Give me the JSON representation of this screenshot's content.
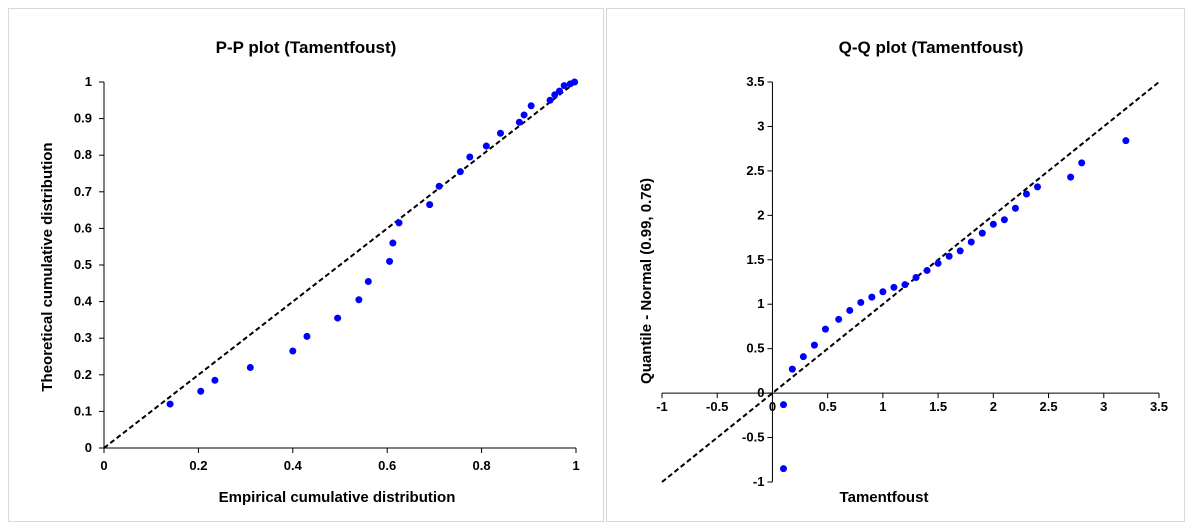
{
  "chart_data": [
    {
      "type": "scatter",
      "title": "P-P plot (Tamentfoust)",
      "xlabel": "Empirical cumulative distribution",
      "ylabel": "Theoretical cumulative distribution",
      "xlim": [
        0,
        1
      ],
      "ylim": [
        0,
        1
      ],
      "xticks": [
        "0",
        "0.2",
        "0.4",
        "0.6",
        "0.8",
        "1"
      ],
      "yticks": [
        "0",
        "0.1",
        "0.2",
        "0.3",
        "0.4",
        "0.5",
        "0.6",
        "0.7",
        "0.8",
        "0.9",
        "1"
      ],
      "reference_line": {
        "from": [
          0,
          0
        ],
        "to": [
          1,
          1
        ],
        "style": "dashed"
      },
      "point_color": "#0000ff",
      "points": [
        [
          0.14,
          0.12
        ],
        [
          0.205,
          0.155
        ],
        [
          0.235,
          0.185
        ],
        [
          0.31,
          0.22
        ],
        [
          0.4,
          0.265
        ],
        [
          0.43,
          0.305
        ],
        [
          0.495,
          0.355
        ],
        [
          0.54,
          0.405
        ],
        [
          0.56,
          0.455
        ],
        [
          0.605,
          0.51
        ],
        [
          0.612,
          0.56
        ],
        [
          0.625,
          0.615
        ],
        [
          0.69,
          0.665
        ],
        [
          0.71,
          0.715
        ],
        [
          0.755,
          0.755
        ],
        [
          0.775,
          0.795
        ],
        [
          0.81,
          0.825
        ],
        [
          0.84,
          0.86
        ],
        [
          0.88,
          0.89
        ],
        [
          0.89,
          0.91
        ],
        [
          0.905,
          0.935
        ],
        [
          0.945,
          0.95
        ],
        [
          0.955,
          0.965
        ],
        [
          0.965,
          0.975
        ],
        [
          0.975,
          0.99
        ],
        [
          0.988,
          0.995
        ],
        [
          0.997,
          1.0
        ]
      ]
    },
    {
      "type": "scatter",
      "title": "Q-Q plot (Tamentfoust)",
      "xlabel": "Tamentfoust",
      "ylabel": "Quantile - Normal (0.99, 0.76)",
      "xlim": [
        -1,
        3.5
      ],
      "ylim": [
        -1,
        3.5
      ],
      "xticks": [
        "-1",
        "-0.5",
        "0",
        "0.5",
        "1",
        "1.5",
        "2",
        "2.5",
        "3",
        "3.5"
      ],
      "yticks": [
        "-1",
        "-0.5",
        "0",
        "0.5",
        "1",
        "1.5",
        "2",
        "2.5",
        "3",
        "3.5"
      ],
      "reference_line": {
        "from": [
          -1,
          -1
        ],
        "to": [
          3.5,
          3.5
        ],
        "style": "dashed"
      },
      "point_color": "#0000ff",
      "points": [
        [
          0.1,
          -0.85
        ],
        [
          0.1,
          -0.13
        ],
        [
          0.18,
          0.27
        ],
        [
          0.28,
          0.41
        ],
        [
          0.38,
          0.54
        ],
        [
          0.48,
          0.72
        ],
        [
          0.6,
          0.83
        ],
        [
          0.7,
          0.93
        ],
        [
          0.8,
          1.02
        ],
        [
          0.9,
          1.08
        ],
        [
          1.0,
          1.14
        ],
        [
          1.1,
          1.19
        ],
        [
          1.2,
          1.22
        ],
        [
          1.3,
          1.3
        ],
        [
          1.4,
          1.38
        ],
        [
          1.5,
          1.46
        ],
        [
          1.6,
          1.54
        ],
        [
          1.7,
          1.6
        ],
        [
          1.8,
          1.7
        ],
        [
          1.9,
          1.8
        ],
        [
          2.0,
          1.9
        ],
        [
          2.1,
          1.95
        ],
        [
          2.2,
          2.08
        ],
        [
          2.3,
          2.24
        ],
        [
          2.4,
          2.32
        ],
        [
          2.7,
          2.43
        ],
        [
          2.8,
          2.59
        ],
        [
          3.2,
          2.84
        ]
      ]
    }
  ]
}
